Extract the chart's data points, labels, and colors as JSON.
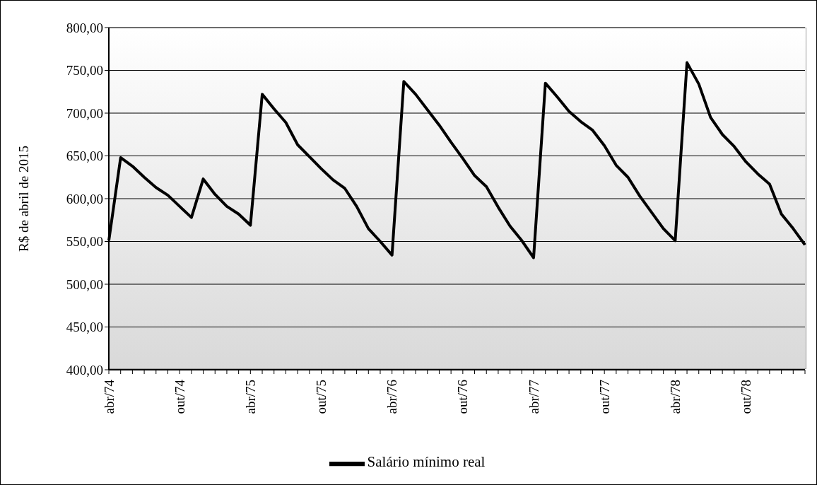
{
  "chart_data": {
    "type": "line",
    "ylabel": "R$ de abril de 2015",
    "categories": [
      "abr/74",
      null,
      null,
      null,
      null,
      null,
      "out/74",
      null,
      null,
      null,
      null,
      null,
      "abr/75",
      null,
      null,
      null,
      null,
      null,
      "out/75",
      null,
      null,
      null,
      null,
      null,
      "abr/76",
      null,
      null,
      null,
      null,
      null,
      "out/76",
      null,
      null,
      null,
      null,
      null,
      "abr/77",
      null,
      null,
      null,
      null,
      null,
      "out/77",
      null,
      null,
      null,
      null,
      null,
      "abr/78",
      null,
      null,
      null,
      null,
      null,
      "out/78",
      null,
      null,
      null,
      null,
      null
    ],
    "series": [
      {
        "name": "Salário mínimo real",
        "color": "#000000",
        "values": [
          551,
          648,
          638,
          625,
          613,
          604,
          591,
          578,
          623,
          605,
          591,
          582,
          569,
          722,
          705,
          689,
          663,
          649,
          635,
          622,
          612,
          591,
          565,
          550,
          534,
          737,
          722,
          704,
          686,
          666,
          647,
          627,
          614,
          590,
          568,
          551,
          531,
          735,
          719,
          702,
          690,
          680,
          662,
          639,
          625,
          603,
          584,
          565,
          551,
          759,
          734,
          695,
          675,
          661,
          643,
          629,
          617,
          582,
          565,
          546
        ]
      }
    ],
    "ylim": [
      400,
      800
    ],
    "yticks": [
      {
        "value": 400,
        "label": "400,00"
      },
      {
        "value": 450,
        "label": "450,00"
      },
      {
        "value": 500,
        "label": "500,00"
      },
      {
        "value": 550,
        "label": "550,00"
      },
      {
        "value": 600,
        "label": "600,00"
      },
      {
        "value": 650,
        "label": "650,00"
      },
      {
        "value": 700,
        "label": "700,00"
      },
      {
        "value": 750,
        "label": "750,00"
      },
      {
        "value": 800,
        "label": "800,00"
      }
    ],
    "grid": "y",
    "legend": "bottom",
    "marker": "none",
    "line_style": "solid"
  }
}
